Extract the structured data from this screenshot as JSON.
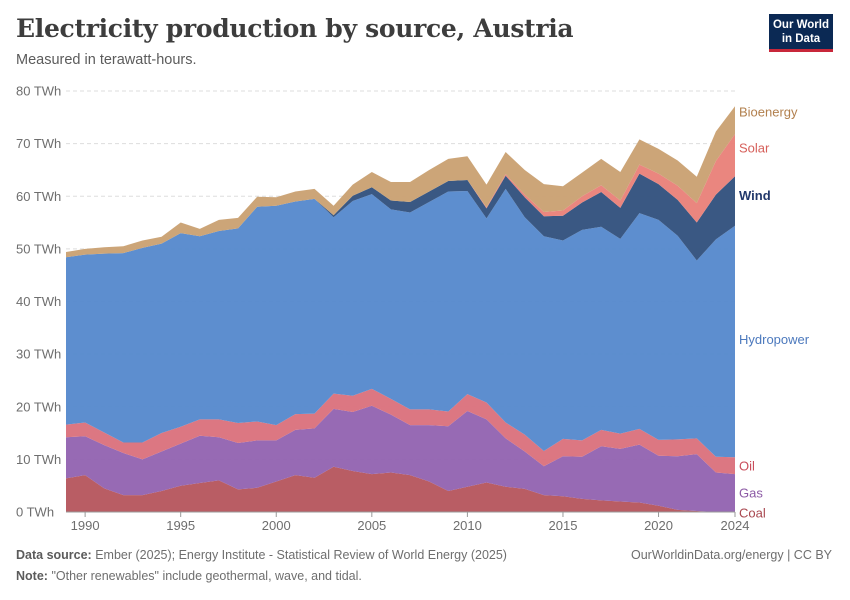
{
  "header": {
    "title": "Electricity production by source, Austria",
    "subtitle": "Measured in terawatt-hours.",
    "logo_line1": "Our World",
    "logo_line2": "in Data"
  },
  "footer": {
    "source_label": "Data source:",
    "source_text": "Ember (2025); Energy Institute - Statistical Review of World Energy (2025)",
    "note_label": "Note:",
    "note_text": "\"Other renewables\" include geothermal, wave, and tidal.",
    "credit": "OurWorldinData.org/energy | CC BY"
  },
  "chart_data": {
    "type": "area",
    "stacked": true,
    "title": "Electricity production by source, Austria",
    "ylabel": "TWh",
    "ylim": [
      0,
      80
    ],
    "yticks": [
      0,
      10,
      20,
      30,
      40,
      50,
      60,
      70,
      80
    ],
    "ytick_labels": [
      "0 TWh",
      "10 TWh",
      "20 TWh",
      "30 TWh",
      "40 TWh",
      "50 TWh",
      "60 TWh",
      "70 TWh",
      "80 TWh"
    ],
    "xlim": [
      1989,
      2024
    ],
    "xticks": [
      1990,
      1995,
      2000,
      2005,
      2010,
      2015,
      2020,
      2024
    ],
    "xtick_labels": [
      "1990",
      "1995",
      "2000",
      "2005",
      "2010",
      "2015",
      "2020",
      "2024"
    ],
    "x": [
      1989,
      1990,
      1991,
      1992,
      1993,
      1994,
      1995,
      1996,
      1997,
      1998,
      1999,
      2000,
      2001,
      2002,
      2003,
      2004,
      2005,
      2006,
      2007,
      2008,
      2009,
      2010,
      2011,
      2012,
      2013,
      2014,
      2015,
      2016,
      2017,
      2018,
      2019,
      2020,
      2021,
      2022,
      2023,
      2024
    ],
    "series": [
      {
        "name": "Coal",
        "color": "#b5545c",
        "label_color": "#a8474f",
        "values": [
          6.4,
          7.0,
          4.5,
          3.2,
          3.2,
          4.0,
          5.0,
          5.5,
          6.0,
          4.3,
          4.6,
          5.8,
          7.0,
          6.5,
          8.6,
          7.8,
          7.2,
          7.5,
          7.0,
          5.8,
          4.0,
          4.8,
          5.6,
          4.8,
          4.4,
          3.2,
          3.0,
          2.5,
          2.2,
          2.0,
          1.8,
          1.2,
          0.4,
          0.2,
          0.0,
          0.0
        ]
      },
      {
        "name": "Gas",
        "color": "#9162b0",
        "label_color": "#8c5aa5",
        "values": [
          7.8,
          7.4,
          8.2,
          8.0,
          6.8,
          7.5,
          8.0,
          9.0,
          8.2,
          8.8,
          9.0,
          7.8,
          8.6,
          9.4,
          11.0,
          11.2,
          13.0,
          11.0,
          9.5,
          10.7,
          12.3,
          14.4,
          12.0,
          9.2,
          7.1,
          5.5,
          7.6,
          8.0,
          10.3,
          10.0,
          11.0,
          9.5,
          10.2,
          10.8,
          7.5,
          7.2
        ]
      },
      {
        "name": "Oil",
        "color": "#da707b",
        "label_color": "#c94d5b",
        "values": [
          2.4,
          2.6,
          2.4,
          2.0,
          3.2,
          3.5,
          3.2,
          3.1,
          3.4,
          3.8,
          3.6,
          2.9,
          3.0,
          2.8,
          2.9,
          3.1,
          3.2,
          3.0,
          3.0,
          3.0,
          2.8,
          3.2,
          3.2,
          3.0,
          3.2,
          2.9,
          3.3,
          3.1,
          3.1,
          2.9,
          3.0,
          3.0,
          3.2,
          3.0,
          3.0,
          3.2
        ]
      },
      {
        "name": "Hydropower",
        "color": "#5488cc",
        "label_color": "#4c79bd",
        "values": [
          31.8,
          31.9,
          34.0,
          36.0,
          37.0,
          36.0,
          36.8,
          34.8,
          35.8,
          37.0,
          40.8,
          41.7,
          40.4,
          40.8,
          33.5,
          37.0,
          37.0,
          36.0,
          37.4,
          39.4,
          41.8,
          38.6,
          35.0,
          44.4,
          41.3,
          40.8,
          37.7,
          40.0,
          38.6,
          37.0,
          41.0,
          41.8,
          38.7,
          33.8,
          41.3,
          44.0
        ]
      },
      {
        "name": "Wind",
        "color": "#2f4f7c",
        "label_color": "#22386b",
        "values": [
          0,
          0,
          0,
          0,
          0,
          0,
          0,
          0,
          0,
          0,
          0,
          0,
          0,
          0,
          0.4,
          1.0,
          1.3,
          1.7,
          2.0,
          2.0,
          2.0,
          2.1,
          1.9,
          2.5,
          3.8,
          3.8,
          4.7,
          5.2,
          6.6,
          5.9,
          7.5,
          6.8,
          6.8,
          7.2,
          8.5,
          9.4
        ]
      },
      {
        "name": "Solar",
        "color": "#e97f78",
        "label_color": "#d65f5a",
        "values": [
          0,
          0,
          0,
          0,
          0,
          0,
          0,
          0,
          0,
          0,
          0,
          0,
          0,
          0,
          0,
          0,
          0,
          0,
          0,
          0,
          0,
          0,
          0.2,
          0.3,
          0.5,
          0.8,
          1.0,
          1.2,
          1.3,
          1.4,
          1.7,
          2.0,
          2.7,
          3.7,
          6.4,
          8.0
        ]
      },
      {
        "name": "Bioenergy",
        "color": "#c9a071",
        "label_color": "#b2804e",
        "values": [
          1.0,
          1.1,
          1.2,
          1.3,
          1.4,
          1.3,
          2.0,
          1.4,
          2.1,
          2.0,
          1.9,
          1.6,
          1.9,
          1.9,
          1.8,
          2.1,
          2.9,
          3.5,
          3.8,
          4.1,
          4.2,
          4.5,
          4.3,
          4.2,
          4.7,
          5.3,
          4.6,
          4.5,
          5.0,
          5.4,
          4.8,
          4.7,
          4.8,
          5.0,
          5.6,
          5.3
        ]
      }
    ],
    "labels": [
      {
        "name": "Bioenergy",
        "value": 76.0
      },
      {
        "name": "Solar",
        "value": 69.2
      },
      {
        "name": "Wind",
        "value": 60.1
      },
      {
        "name": "Hydropower",
        "value": 32.8
      },
      {
        "name": "Oil",
        "value": 8.7
      },
      {
        "name": "Gas",
        "value": 3.6
      },
      {
        "name": "Coal",
        "value": -0.2
      }
    ]
  }
}
